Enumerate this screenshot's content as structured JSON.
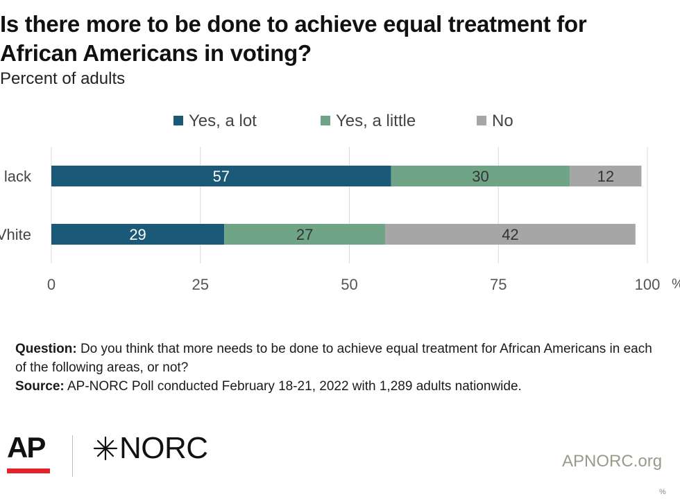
{
  "header": {
    "title": "Is there more to be done to achieve equal treatment for\nAfrican Americans in voting?",
    "subtitle": "Percent of adults"
  },
  "chart_data": {
    "type": "bar",
    "orientation": "horizontal",
    "stacked": true,
    "categories": [
      "Black",
      "White"
    ],
    "visible_category_labels": [
      "lack",
      "Vhite"
    ],
    "series": [
      {
        "name": "Yes, a lot",
        "color": "#1a5a78",
        "label_color": "#ffffff",
        "values": [
          57,
          29
        ]
      },
      {
        "name": "Yes, a little",
        "color": "#6fa487",
        "label_color": "#333333",
        "values": [
          30,
          27
        ]
      },
      {
        "name": "No",
        "color": "#a6a6a6",
        "label_color": "#333333",
        "values": [
          12,
          42
        ]
      }
    ],
    "xlim": [
      0,
      100
    ],
    "xticks": [
      0,
      25,
      50,
      75,
      100
    ],
    "xtick_labels": [
      "0",
      "25",
      "50",
      "75",
      "100"
    ],
    "unit_label": "%",
    "grid": true,
    "legend_position": "top"
  },
  "footer": {
    "question_label": "Question:",
    "question_text": " Do you think that more needs to be done to achieve equal treatment for African Americans in each of the following areas, or not?",
    "source_label": "Source:",
    "source_text": " AP-NORC Poll conducted February 18-21, 2022 with 1,289 adults nationwide.",
    "logo_ap": "AP",
    "logo_norc": "NORC",
    "website": "APNORC.org",
    "corner_mark": "%"
  },
  "colors": {
    "grid": "#d9d9d9",
    "tick_text": "#555555",
    "ap_red": "#e4222a"
  }
}
